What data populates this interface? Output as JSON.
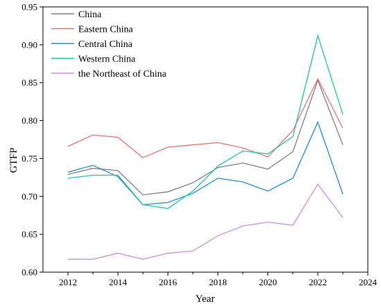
{
  "chart_data": {
    "type": "line",
    "title": "",
    "xlabel": "Year",
    "ylabel": "GTFP",
    "xlim": [
      2011,
      2024
    ],
    "ylim": [
      0.6,
      0.95
    ],
    "xticks": [
      2012,
      2014,
      2016,
      2018,
      2020,
      2022,
      2024
    ],
    "yticks": [
      0.6,
      0.65,
      0.7,
      0.75,
      0.8,
      0.85,
      0.9,
      0.95
    ],
    "ytick_labels": [
      "0.60",
      "0.65",
      "0.70",
      "0.75",
      "0.80",
      "0.85",
      "0.90",
      "0.95"
    ],
    "grid": false,
    "legend_position": "top-left",
    "x": [
      2012,
      2013,
      2014,
      2015,
      2016,
      2017,
      2018,
      2019,
      2020,
      2021,
      2022,
      2023
    ],
    "series": [
      {
        "name": "China",
        "color": "#808080",
        "values": [
          0.729,
          0.737,
          0.734,
          0.702,
          0.706,
          0.718,
          0.738,
          0.744,
          0.736,
          0.759,
          0.853,
          0.768
        ]
      },
      {
        "name": "Eastern China",
        "color": "#f07070",
        "values": [
          0.766,
          0.781,
          0.778,
          0.751,
          0.765,
          0.768,
          0.771,
          0.764,
          0.752,
          0.787,
          0.855,
          0.79
        ]
      },
      {
        "name": "Central China",
        "color": "#1f8ee0",
        "values": [
          0.732,
          0.741,
          0.726,
          0.689,
          0.692,
          0.704,
          0.724,
          0.719,
          0.707,
          0.724,
          0.798,
          0.703
        ]
      },
      {
        "name": "Western China",
        "color": "#1dc99a",
        "values": [
          0.724,
          0.728,
          0.728,
          0.689,
          0.684,
          0.707,
          0.74,
          0.76,
          0.756,
          0.779,
          0.912,
          0.808
        ]
      },
      {
        "name": "the Northeast of China",
        "color": "#d08ee0",
        "values": [
          0.617,
          0.617,
          0.625,
          0.617,
          0.625,
          0.628,
          0.648,
          0.661,
          0.666,
          0.662,
          0.716,
          0.672
        ]
      }
    ]
  }
}
